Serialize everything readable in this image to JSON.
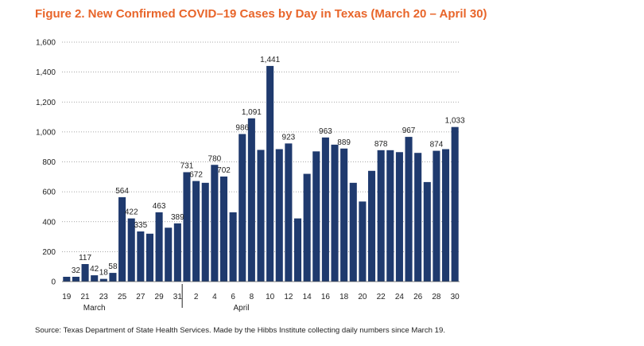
{
  "chart_data": {
    "type": "bar",
    "title": "Figure 2. New Confirmed COVID–19 Cases by Day in Texas (March 20 – April 30)",
    "source": "Source: Texas Department of State Health Services. Made by the Hibbs Institute collecting daily numbers since March 19.",
    "bar_color": "#1f3a6e",
    "title_color": "#e8652a",
    "ylim": [
      0,
      1600
    ],
    "yticks": [
      0,
      200,
      400,
      600,
      800,
      "1,000",
      "1,200",
      "1,400",
      "1,600"
    ],
    "grid": "dotted horizontal",
    "categories": [
      "19",
      "20",
      "21",
      "22",
      "23",
      "24",
      "25",
      "26",
      "27",
      "28",
      "29",
      "30",
      "31",
      "1",
      "2",
      "3",
      "4",
      "5",
      "6",
      "7",
      "8",
      "9",
      "10",
      "11",
      "12",
      "13",
      "14",
      "15",
      "16",
      "17",
      "18",
      "19",
      "20",
      "21",
      "22",
      "23",
      "24",
      "25",
      "26",
      "27",
      "28",
      "29",
      "30"
    ],
    "xtick_labels": [
      "19",
      "21",
      "23",
      "25",
      "27",
      "29",
      "31",
      "2",
      "4",
      "6",
      "8",
      "10",
      "12",
      "14",
      "16",
      "18",
      "20",
      "22",
      "24",
      "26",
      "28",
      "30"
    ],
    "months": [
      "March",
      "April"
    ],
    "values": [
      32,
      32,
      117,
      42,
      18,
      58,
      564,
      422,
      335,
      320,
      463,
      360,
      389,
      731,
      672,
      660,
      780,
      702,
      463,
      986,
      1091,
      880,
      1441,
      885,
      923,
      422,
      720,
      870,
      963,
      915,
      889,
      660,
      535,
      740,
      878,
      878,
      865,
      967,
      860,
      665,
      874,
      885,
      1033
    ],
    "data_labels": {
      "1": "32",
      "2": "117",
      "3": "42",
      "4": "18",
      "5": "58",
      "6": "564",
      "7": "422",
      "8": "335",
      "10": "463",
      "12": "389",
      "13": "731",
      "14": "672",
      "16": "780",
      "17": "702",
      "19": "986",
      "20": "1,091",
      "22": "1,441",
      "24": "923",
      "28": "963",
      "30": "889",
      "34": "878",
      "37": "967",
      "40": "874",
      "42": "1,033"
    }
  }
}
